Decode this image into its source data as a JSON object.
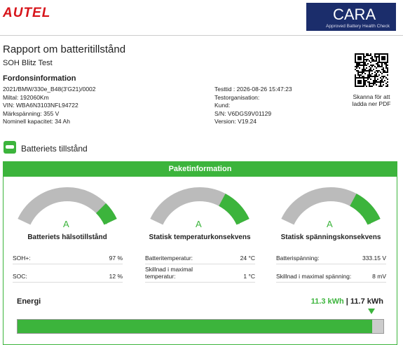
{
  "header": {
    "brand": "AUTEL",
    "badge_title": "CARA",
    "badge_subtitle": "Approved Battery Health Check"
  },
  "report": {
    "title": "Rapport om batteritillstånd",
    "subtitle": "SOH Blitz Test",
    "qr_caption": "Skanna för att ladda ner PDF"
  },
  "vehicle": {
    "heading": "Fordonsinformation",
    "left": [
      "2021/BMW/330e_B48(3'G21)/0002",
      "Miltal: 192060Km",
      "VIN: WBA6N3103NFL94722",
      "Märkspänning: 355 V",
      "Nominell kapacitet: 34 Ah"
    ],
    "right": [
      "Testtid : 2026-08-26 15:47:23",
      "Testorganisation:",
      "Kund:",
      "S/N: V6DGS9V01129",
      "Version: V19.24"
    ]
  },
  "status": {
    "heading": "Batteriets tillstånd"
  },
  "package": {
    "heading": "Paketinformation",
    "gauges": [
      {
        "grade": "A",
        "label": "Batteriets hälsotillstånd",
        "rows": [
          [
            "SOH+:",
            "97 %"
          ],
          [
            "SOC:",
            "12 %"
          ]
        ]
      },
      {
        "grade": "A",
        "label": "Statisk temperaturkonsekvens",
        "rows": [
          [
            "Batteritemperatur:",
            "24 °C"
          ],
          [
            "Skillnad i maximal temperatur:",
            "1 °C"
          ]
        ]
      },
      {
        "grade": "A",
        "label": "Statisk spänningskonsekvens",
        "rows": [
          [
            "Batterispänning:",
            "333.15 V"
          ],
          [
            "Skillnad i maximal spänning:",
            "8 mV"
          ]
        ]
      }
    ]
  },
  "energy": {
    "label": "Energi",
    "current": "11.3 kWh",
    "separator": "|",
    "total": "11.7 kWh"
  }
}
